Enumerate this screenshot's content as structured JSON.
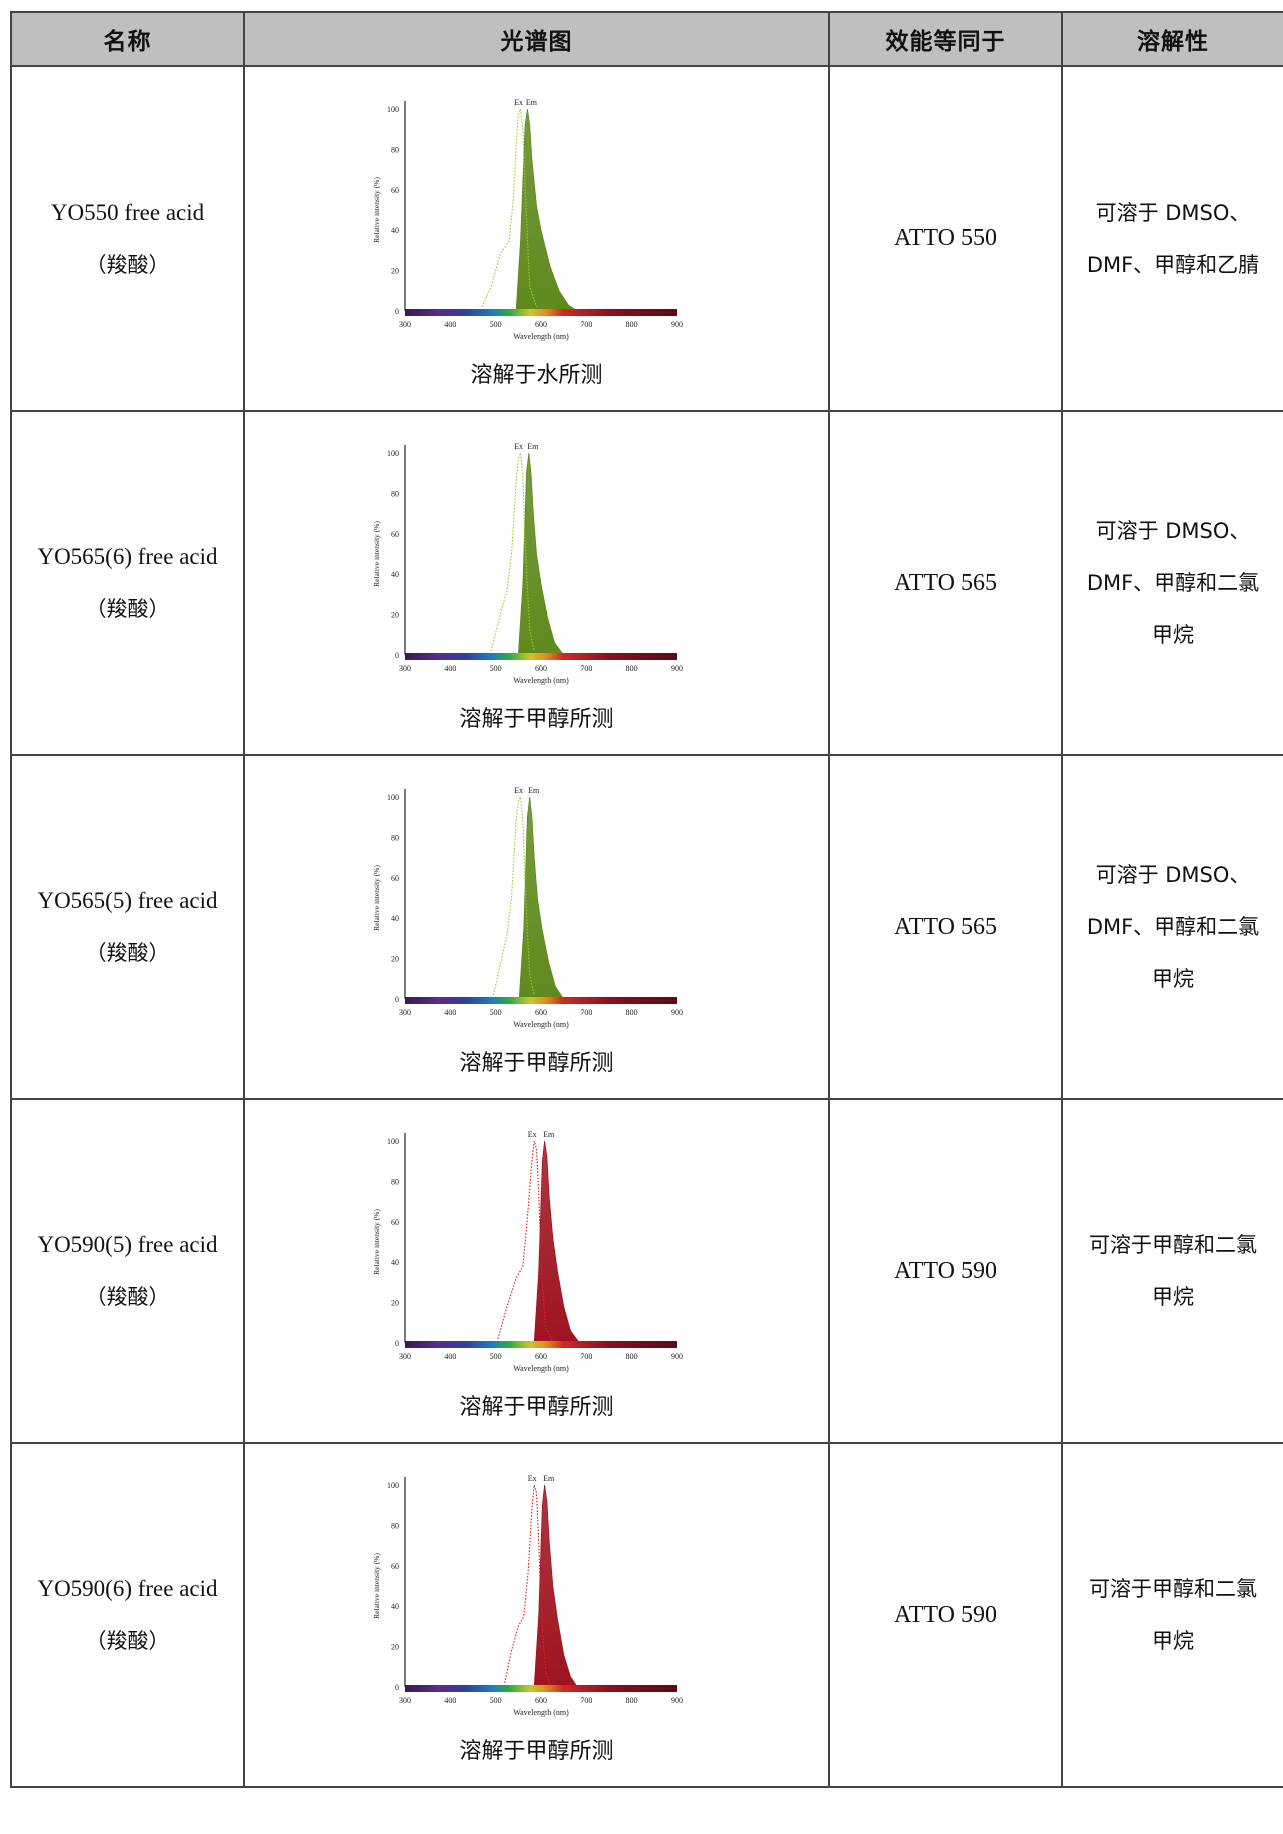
{
  "headers": [
    "名称",
    "光谱图",
    "效能等同于",
    "溶解性"
  ],
  "chart_common": {
    "x_ticks": [
      "300",
      "400",
      "500",
      "600",
      "700",
      "800",
      "900"
    ],
    "y_ticks": [
      "0",
      "20",
      "40",
      "60",
      "80",
      "100"
    ],
    "xlabel": "Wavelength (nm)",
    "ylabel": "Relative intensity (%)",
    "ex_label": "Ex",
    "em_label": "Em"
  },
  "rows": [
    {
      "name": "YO550 free acid",
      "sub": "（羧酸）",
      "caption": "溶解于水所测",
      "equiv": "ATTO 550",
      "solubility": [
        "可溶于 DMSO、",
        "DMF、甲醇和乙腈"
      ]
    },
    {
      "name": "YO565(6) free acid",
      "sub": "（羧酸）",
      "caption": "溶解于甲醇所测",
      "equiv": "ATTO 565",
      "solubility": [
        "可溶于 DMSO、",
        "DMF、甲醇和二氯",
        "甲烷"
      ]
    },
    {
      "name": "YO565(5) free acid",
      "sub": "（羧酸）",
      "caption": "溶解于甲醇所测",
      "equiv": "ATTO 565",
      "solubility": [
        "可溶于 DMSO、",
        "DMF、甲醇和二氯",
        "甲烷"
      ]
    },
    {
      "name": "YO590(5) free acid",
      "sub": "（羧酸）",
      "caption": "溶解于甲醇所测",
      "equiv": "ATTO 590",
      "solubility": [
        "可溶于甲醇和二氯",
        "甲烷"
      ]
    },
    {
      "name": "YO590(6) free acid",
      "sub": "（羧酸）",
      "caption": "溶解于甲醇所测",
      "equiv": "ATTO 590",
      "solubility": [
        "可溶于甲醇和二氯",
        "甲烷"
      ]
    }
  ],
  "chart_data": [
    {
      "type": "area",
      "xlabel": "Wavelength (nm)",
      "ylabel": "Relative intensity (%)",
      "xlim": [
        300,
        900
      ],
      "ylim": [
        0,
        100
      ],
      "color": "#5f8a1e",
      "ex_color": "#9ccc2a",
      "series": [
        {
          "name": "Ex",
          "style": "dotted",
          "x": [
            470,
            490,
            510,
            530,
            540,
            545,
            550,
            555,
            560,
            565,
            575,
            590
          ],
          "y": [
            2,
            12,
            28,
            35,
            58,
            82,
            97,
            100,
            90,
            60,
            12,
            2
          ]
        },
        {
          "name": "Em",
          "style": "filled",
          "x": [
            545,
            555,
            565,
            570,
            575,
            580,
            590,
            600,
            620,
            640,
            660,
            680
          ],
          "y": [
            0,
            35,
            92,
            100,
            92,
            75,
            52,
            40,
            22,
            10,
            3,
            0
          ]
        }
      ]
    },
    {
      "type": "area",
      "xlabel": "Wavelength (nm)",
      "ylabel": "Relative intensity (%)",
      "xlim": [
        300,
        900
      ],
      "ylim": [
        0,
        100
      ],
      "color": "#5f8a1e",
      "ex_color": "#9ccc2a",
      "series": [
        {
          "name": "Ex",
          "style": "dotted",
          "x": [
            490,
            510,
            525,
            535,
            545,
            550,
            555,
            560,
            565,
            575,
            585
          ],
          "y": [
            2,
            20,
            32,
            50,
            85,
            97,
            100,
            88,
            55,
            12,
            2
          ]
        },
        {
          "name": "Em",
          "style": "filled",
          "x": [
            550,
            560,
            568,
            573,
            578,
            583,
            590,
            600,
            615,
            630,
            650
          ],
          "y": [
            0,
            35,
            90,
            100,
            90,
            70,
            50,
            35,
            18,
            6,
            0
          ]
        }
      ]
    },
    {
      "type": "area",
      "xlabel": "Wavelength (nm)",
      "ylabel": "Relative intensity (%)",
      "xlim": [
        300,
        900
      ],
      "ylim": [
        0,
        100
      ],
      "color": "#5f8a1e",
      "ex_color": "#9ccc2a",
      "series": [
        {
          "name": "Ex",
          "style": "dotted",
          "x": [
            495,
            515,
            525,
            535,
            545,
            550,
            555,
            560,
            565,
            575,
            585
          ],
          "y": [
            2,
            22,
            32,
            50,
            88,
            98,
            100,
            88,
            55,
            12,
            2
          ]
        },
        {
          "name": "Em",
          "style": "filled",
          "x": [
            552,
            562,
            570,
            575,
            580,
            585,
            592,
            602,
            617,
            632,
            650
          ],
          "y": [
            0,
            35,
            90,
            100,
            90,
            70,
            50,
            35,
            18,
            6,
            0
          ]
        }
      ]
    },
    {
      "type": "area",
      "xlabel": "Wavelength (nm)",
      "ylabel": "Relative intensity (%)",
      "xlim": [
        300,
        900
      ],
      "ylim": [
        0,
        100
      ],
      "color": "#9e1420",
      "ex_color": "#e02020",
      "series": [
        {
          "name": "Ex",
          "style": "dotted",
          "x": [
            505,
            525,
            545,
            560,
            570,
            580,
            585,
            590,
            595,
            600,
            610,
            625
          ],
          "y": [
            2,
            18,
            32,
            38,
            62,
            90,
            100,
            96,
            75,
            40,
            8,
            1
          ]
        },
        {
          "name": "Em",
          "style": "filled",
          "x": [
            585,
            595,
            603,
            608,
            613,
            618,
            626,
            636,
            650,
            665,
            685
          ],
          "y": [
            0,
            35,
            90,
            100,
            92,
            72,
            52,
            36,
            18,
            6,
            0
          ]
        }
      ]
    },
    {
      "type": "area",
      "xlabel": "Wavelength (nm)",
      "ylabel": "Relative intensity (%)",
      "xlim": [
        300,
        900
      ],
      "ylim": [
        0,
        100
      ],
      "color": "#9e1420",
      "ex_color": "#e02020",
      "series": [
        {
          "name": "Ex",
          "style": "dotted",
          "x": [
            520,
            535,
            550,
            562,
            572,
            580,
            585,
            590,
            595,
            600,
            610,
            620
          ],
          "y": [
            2,
            18,
            30,
            35,
            58,
            88,
            100,
            96,
            72,
            40,
            8,
            1
          ]
        },
        {
          "name": "Em",
          "style": "filled",
          "x": [
            585,
            595,
            603,
            608,
            613,
            618,
            626,
            636,
            650,
            665,
            680
          ],
          "y": [
            0,
            35,
            90,
            100,
            92,
            72,
            50,
            34,
            16,
            5,
            0
          ]
        }
      ]
    }
  ]
}
